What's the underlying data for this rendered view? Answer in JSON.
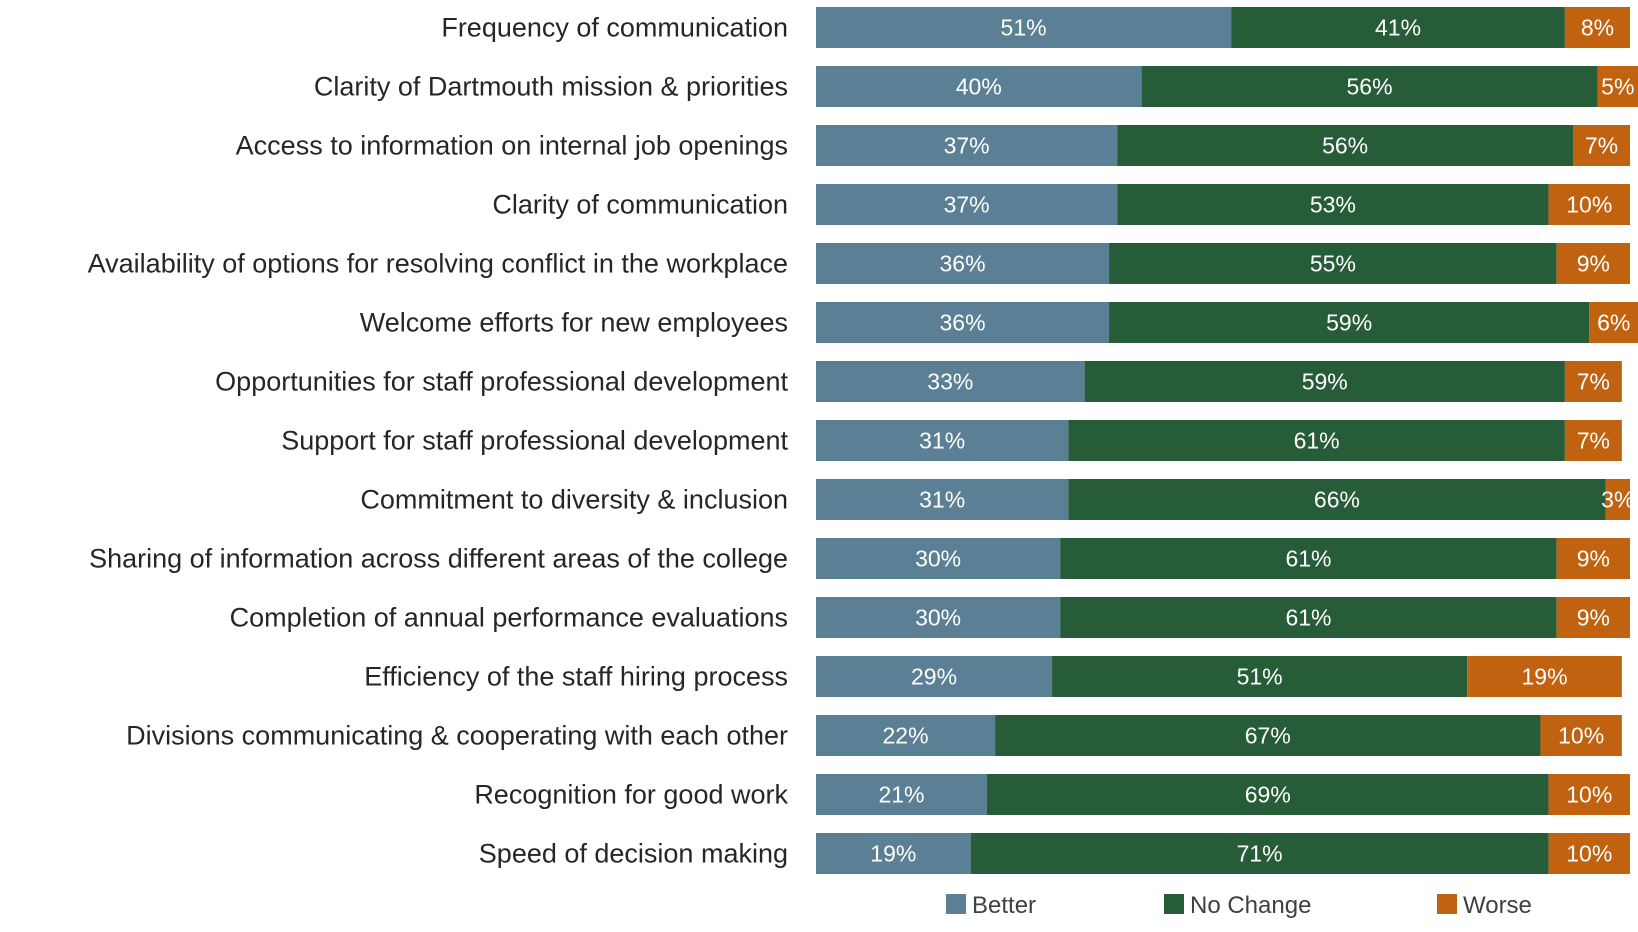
{
  "chart_data": {
    "type": "bar",
    "orientation": "horizontal",
    "stacked": true,
    "percent_stacked": true,
    "title": "",
    "xlabel": "",
    "ylabel": "",
    "xlim": [
      0,
      100
    ],
    "grid": false,
    "legend_position": "bottom",
    "categories": [
      "Frequency of communication",
      "Clarity of Dartmouth mission & priorities",
      "Access to information on internal job openings",
      "Clarity of communication",
      "Availability of options for resolving conflict in the workplace",
      "Welcome efforts for new employees",
      "Opportunities for staff professional development",
      "Support for staff professional development",
      "Commitment to diversity & inclusion",
      "Sharing of information across different areas of the college",
      "Completion of annual performance evaluations",
      "Efficiency of the staff hiring process",
      "Divisions communicating & cooperating with each other",
      "Recognition for good work",
      "Speed of decision making"
    ],
    "series": [
      {
        "name": "Better",
        "color": "#5b8096",
        "values": [
          51,
          40,
          37,
          37,
          36,
          36,
          33,
          31,
          31,
          30,
          30,
          29,
          22,
          21,
          19
        ],
        "labels": [
          "51%",
          "40%",
          "37%",
          "37%",
          "36%",
          "36%",
          "33%",
          "31%",
          "31%",
          "30%",
          "30%",
          "29%",
          "22%",
          "21%",
          "19%"
        ]
      },
      {
        "name": "No Change",
        "color": "#275c38",
        "values": [
          41,
          56,
          56,
          53,
          55,
          59,
          59,
          61,
          66,
          61,
          61,
          51,
          67,
          69,
          71
        ],
        "labels": [
          "41%",
          "56%",
          "56%",
          "53%",
          "55%",
          "59%",
          "59%",
          "61%",
          "66%",
          "61%",
          "61%",
          "51%",
          "67%",
          "69%",
          "71%"
        ]
      },
      {
        "name": "Worse",
        "color": "#c0620f",
        "values": [
          8,
          5,
          7,
          10,
          9,
          6,
          7,
          7,
          3,
          9,
          9,
          19,
          10,
          10,
          10
        ],
        "labels": [
          "8%",
          "5%",
          "7%",
          "10%",
          "9%",
          "6%",
          "7%",
          "7%",
          "3%",
          "9%",
          "9%",
          "19%",
          "10%",
          "10%",
          "10%"
        ]
      }
    ]
  }
}
